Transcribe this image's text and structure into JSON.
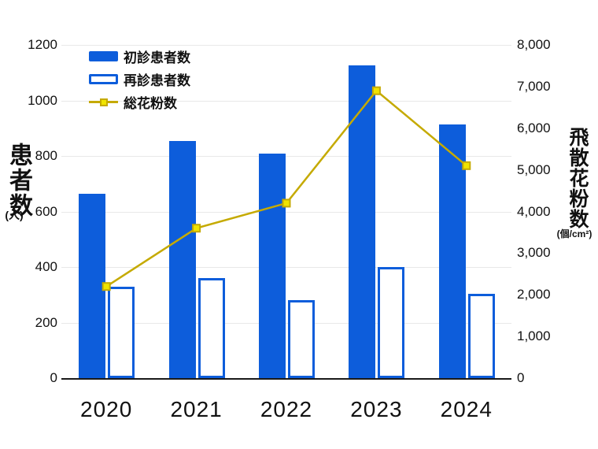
{
  "chart_data": {
    "type": "bar",
    "subtype": "dual-axis bar and line combo",
    "categories": [
      "2020",
      "2021",
      "2022",
      "2023",
      "2024"
    ],
    "series": [
      {
        "name": "初診患者数",
        "type": "bar",
        "style": "filled",
        "axis": "left",
        "values": [
          665,
          855,
          810,
          1125,
          915
        ]
      },
      {
        "name": "再診患者数",
        "type": "bar",
        "style": "outlined",
        "axis": "left",
        "values": [
          330,
          360,
          280,
          400,
          305
        ]
      },
      {
        "name": "総花粉数",
        "type": "line",
        "style": "line-square-marker",
        "axis": "right",
        "values": [
          2200,
          3600,
          4200,
          6900,
          5100
        ]
      }
    ],
    "left_axis": {
      "title": "患者数",
      "unit": "(人)",
      "min": 0,
      "max": 1200,
      "step": 200,
      "tick_values": [
        0,
        200,
        400,
        600,
        800,
        1000,
        1200
      ],
      "tick_labels": [
        "0",
        "200",
        "400",
        "600",
        "800",
        "1000",
        "1200"
      ]
    },
    "right_axis": {
      "title": "飛散花粉数",
      "unit": "(個/cm²)",
      "min": 0,
      "max": 8000,
      "step": 1000,
      "tick_values": [
        0,
        1000,
        2000,
        3000,
        4000,
        5000,
        6000,
        7000,
        8000
      ],
      "tick_labels": [
        "0",
        "1,000",
        "2,000",
        "3,000",
        "4,000",
        "5,000",
        "6,000",
        "7,000",
        "8,000"
      ]
    },
    "grid": true,
    "legend_position": "top-left-inside"
  },
  "colors": {
    "bar_fill": "#0d5ddb",
    "bar_outline": "#0d5ddb",
    "line": "#c5aa00",
    "marker_fill": "#f0e400",
    "grid": "#e8e8e8",
    "axis_line": "#1a1a1a",
    "text": "#111111",
    "background": "#ffffff"
  }
}
